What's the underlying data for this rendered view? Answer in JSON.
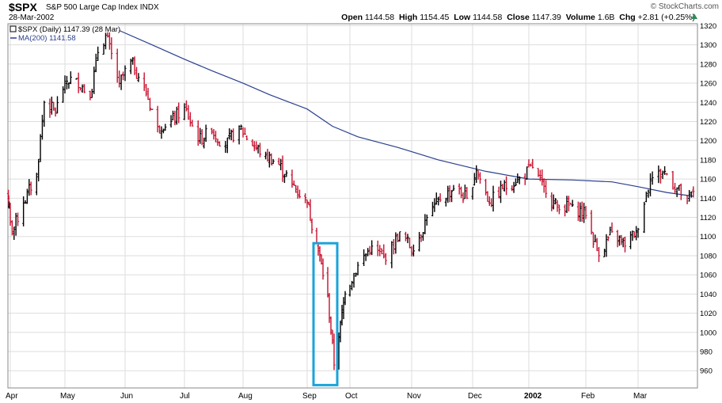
{
  "header": {
    "symbol": "$SPX",
    "name": "S&P 500 Large Cap Index",
    "exchange": "INDX",
    "date": "28-Mar-2002",
    "brand": "© StockCharts.com",
    "stats": {
      "open_label": "Open",
      "open": "1144.58",
      "high_label": "High",
      "high": "1154.45",
      "low_label": "Low",
      "low": "1144.58",
      "close_label": "Close",
      "close": "1147.39",
      "volume_label": "Volume",
      "volume": "1.6B",
      "chg_label": "Chg",
      "chg": "+2.81 (+0.25%)"
    }
  },
  "legend": {
    "price_entry": "$SPX (Daily) 1147.39 (28 Mar)",
    "ma_entry": "MA(200) 1141.58"
  },
  "colors": {
    "up": "#000000",
    "down": "#c8102e",
    "ma": "#2a3f8f",
    "highlight": "#1aa3d9",
    "grid": "#dddddd"
  },
  "chart_data": {
    "type": "line",
    "ylim": [
      942,
      1322
    ],
    "y_ticks": [
      960,
      980,
      1000,
      1020,
      1040,
      1060,
      1080,
      1100,
      1120,
      1140,
      1160,
      1180,
      1200,
      1220,
      1240,
      1260,
      1280,
      1300,
      1320
    ],
    "x_ticks": [
      {
        "label": "Apr",
        "date": "2001-04-02"
      },
      {
        "label": "May",
        "date": "2001-05-01"
      },
      {
        "label": "Jun",
        "date": "2001-06-01"
      },
      {
        "label": "Jul",
        "date": "2001-07-02"
      },
      {
        "label": "Aug",
        "date": "2001-08-01"
      },
      {
        "label": "Sep",
        "date": "2001-09-04"
      },
      {
        "label": "Oct",
        "date": "2001-10-01"
      },
      {
        "label": "Nov",
        "date": "2001-11-01"
      },
      {
        "label": "Dec",
        "date": "2001-12-03"
      },
      {
        "label": "2002",
        "date": "2002-01-02"
      },
      {
        "label": "Feb",
        "date": "2002-02-01"
      },
      {
        "label": "Mar",
        "date": "2002-03-01"
      }
    ],
    "grid": true,
    "legend": "top-left",
    "series": [
      {
        "name": "$SPX (Daily)",
        "style": "ohlc",
        "points": [
          [
            "2001-03-28",
            1140
          ],
          [
            "2001-04-03",
            1105
          ],
          [
            "2001-04-09",
            1135
          ],
          [
            "2001-04-16",
            1165
          ],
          [
            "2001-04-20",
            1240
          ],
          [
            "2001-04-26",
            1230
          ],
          [
            "2001-05-01",
            1262
          ],
          [
            "2001-05-07",
            1265
          ],
          [
            "2001-05-14",
            1245
          ],
          [
            "2001-05-18",
            1292
          ],
          [
            "2001-05-22",
            1310
          ],
          [
            "2001-05-29",
            1260
          ],
          [
            "2001-06-04",
            1283
          ],
          [
            "2001-06-11",
            1256
          ],
          [
            "2001-06-18",
            1215
          ],
          [
            "2001-06-25",
            1220
          ],
          [
            "2001-07-02",
            1235
          ],
          [
            "2001-07-09",
            1200
          ],
          [
            "2001-07-16",
            1210
          ],
          [
            "2001-07-23",
            1195
          ],
          [
            "2001-07-30",
            1215
          ],
          [
            "2001-08-06",
            1195
          ],
          [
            "2001-08-13",
            1185
          ],
          [
            "2001-08-20",
            1175
          ],
          [
            "2001-08-27",
            1155
          ],
          [
            "2001-09-04",
            1135
          ],
          [
            "2001-09-10",
            1093
          ],
          [
            "2001-09-17",
            1038
          ],
          [
            "2001-09-21",
            966
          ],
          [
            "2001-09-25",
            1010
          ],
          [
            "2001-09-28",
            1040
          ],
          [
            "2001-10-05",
            1070
          ],
          [
            "2001-10-12",
            1090
          ],
          [
            "2001-10-19",
            1075
          ],
          [
            "2001-10-26",
            1105
          ],
          [
            "2001-11-02",
            1085
          ],
          [
            "2001-11-09",
            1120
          ],
          [
            "2001-11-16",
            1138
          ],
          [
            "2001-11-23",
            1150
          ],
          [
            "2001-11-30",
            1140
          ],
          [
            "2001-12-05",
            1170
          ],
          [
            "2001-12-12",
            1135
          ],
          [
            "2001-12-19",
            1150
          ],
          [
            "2001-12-28",
            1161
          ],
          [
            "2002-01-04",
            1172
          ],
          [
            "2002-01-11",
            1145
          ],
          [
            "2002-01-18",
            1128
          ],
          [
            "2002-01-25",
            1133
          ],
          [
            "2002-02-01",
            1122
          ],
          [
            "2002-02-08",
            1080
          ],
          [
            "2002-02-15",
            1105
          ],
          [
            "2002-02-22",
            1090
          ],
          [
            "2002-02-28",
            1106
          ],
          [
            "2002-03-07",
            1160
          ],
          [
            "2002-03-14",
            1168
          ],
          [
            "2002-03-20",
            1150
          ],
          [
            "2002-03-25",
            1137
          ],
          [
            "2002-03-28",
            1147
          ]
        ]
      },
      {
        "name": "MA(200)",
        "style": "line",
        "points": [
          [
            "2001-05-29",
            1315
          ],
          [
            "2001-06-15",
            1300
          ],
          [
            "2001-07-02",
            1285
          ],
          [
            "2001-07-16",
            1273
          ],
          [
            "2001-08-01",
            1260
          ],
          [
            "2001-08-15",
            1248
          ],
          [
            "2001-09-04",
            1233
          ],
          [
            "2001-09-20",
            1215
          ],
          [
            "2001-10-05",
            1204
          ],
          [
            "2001-10-25",
            1193
          ],
          [
            "2001-11-15",
            1180
          ],
          [
            "2001-12-10",
            1168
          ],
          [
            "2002-01-02",
            1160
          ],
          [
            "2002-01-25",
            1159
          ],
          [
            "2002-02-15",
            1157
          ],
          [
            "2002-03-01",
            1152
          ],
          [
            "2002-03-15",
            1146
          ],
          [
            "2002-03-28",
            1142
          ]
        ]
      }
    ],
    "annotations": [
      {
        "type": "box",
        "x0": "2001-09-10",
        "x1": "2001-09-21",
        "y0": 945,
        "y1": 1093
      }
    ]
  }
}
